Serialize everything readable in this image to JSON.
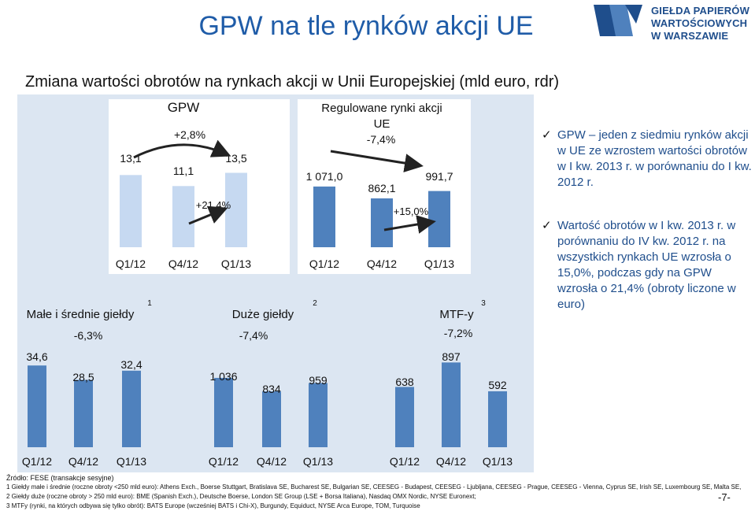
{
  "page": {
    "title": "GPW na tle rynków akcji UE",
    "subtitle": "Zmiana wartości obrotów na rynkach akcji w Unii Europejskiej (mld euro, rdr)",
    "page_number": "-7-"
  },
  "logo": {
    "lines": [
      "GIEŁDA PAPIERÓW",
      "WARTOŚCIOWYCH",
      "W WARSZAWIE"
    ],
    "colors": {
      "primary": "#1f4e8c",
      "accent": "#4f81bd"
    }
  },
  "colors": {
    "gpw_bar": "#c6d9f1",
    "eu_bar": "#4f81bd",
    "panel_bg": "#dce6f2",
    "title_blue": "#1f5ca8",
    "text_blue": "#1f4e8c"
  },
  "chart_data": [
    {
      "type": "bar",
      "title": "GPW",
      "categories": [
        "Q1/12",
        "Q4/12",
        "Q1/13"
      ],
      "values": [
        13.1,
        11.1,
        13.5
      ],
      "data_labels": [
        "13,1",
        "11,1",
        "13,5"
      ],
      "annotations": [
        {
          "text": "+2,8%",
          "from": "Q1/12",
          "to": "Q1/13"
        },
        {
          "text": "+21,4%",
          "from": "Q4/12",
          "to": "Q1/13"
        }
      ]
    },
    {
      "type": "bar",
      "title": "Regulowane rynki akcji UE",
      "categories": [
        "Q1/12",
        "Q4/12",
        "Q1/13"
      ],
      "values": [
        1071.0,
        862.1,
        991.7
      ],
      "data_labels": [
        "1 071,0",
        "862,1",
        "991,7"
      ],
      "annotations": [
        {
          "text": "-7,4%",
          "from": "Q1/12",
          "to": "Q1/13"
        },
        {
          "text": "+15,0%",
          "from": "Q4/12",
          "to": "Q1/13"
        }
      ]
    },
    {
      "type": "bar",
      "title": "Małe i średnie giełdy",
      "footnote": "1",
      "categories": [
        "Q1/12",
        "Q4/12",
        "Q1/13"
      ],
      "values": [
        34.6,
        28.5,
        32.4
      ],
      "data_labels": [
        "34,6",
        "28,5",
        "32,4"
      ],
      "annotations": [
        {
          "text": "-6,3%"
        }
      ]
    },
    {
      "type": "bar",
      "title": "Duże giełdy",
      "footnote": "2",
      "categories": [
        "Q1/12",
        "Q4/12",
        "Q1/13"
      ],
      "values": [
        1036,
        834,
        959
      ],
      "data_labels": [
        "1 036",
        "834",
        "959"
      ],
      "annotations": [
        {
          "text": "-7,4%"
        }
      ]
    },
    {
      "type": "bar",
      "title": "MTF-y",
      "footnote": "3",
      "categories": [
        "Q1/12",
        "Q4/12",
        "Q1/13"
      ],
      "values": [
        638,
        897,
        592
      ],
      "data_labels": [
        "638",
        "897",
        "592"
      ],
      "annotations": [
        {
          "text": "-7,2%"
        }
      ]
    }
  ],
  "bullets": [
    "GPW – jeden z siedmiu rynków akcji w UE ze wzrostem wartości obrotów w I kw. 2013 r. w porównaniu do I kw. 2012 r.",
    "Wartość obrotów w I kw. 2013 r. w porównaniu do IV kw. 2012 r. na wszystkich rynkach UE wzrosła o 15,0%, podczas gdy na GPW wzrosła o 21,4% (obroty liczone w euro)"
  ],
  "footer": {
    "source": "Źródło: FESE (transakcje sesyjne)",
    "notes": [
      "1 Giełdy małe i średnie (roczne obroty <250 mld euro): Athens Exch., Boerse Stuttgart, Bratislava SE, Bucharest SE, Bulgarian SE, CEESEG - Budapest, CEESEG - Ljubljana, CEESEG - Prague, CEESEG - Vienna, Cyprus SE, Irish SE, Luxembourg SE, Malta SE,",
      "2 Giełdy duże (roczne obroty > 250 mld euro): BME (Spanish Exch.), Deutsche Boerse, London SE Group (LSE + Borsa Italiana), Nasdaq OMX Nordic, NYSE Euronext;",
      "3 MTFy (rynki, na których odbywa się tylko obrót): BATS Europe (wcześniej BATS i Chi-X), Burgundy, Equiduct, NYSE Arca Europe, TOM, Turquoise"
    ]
  }
}
